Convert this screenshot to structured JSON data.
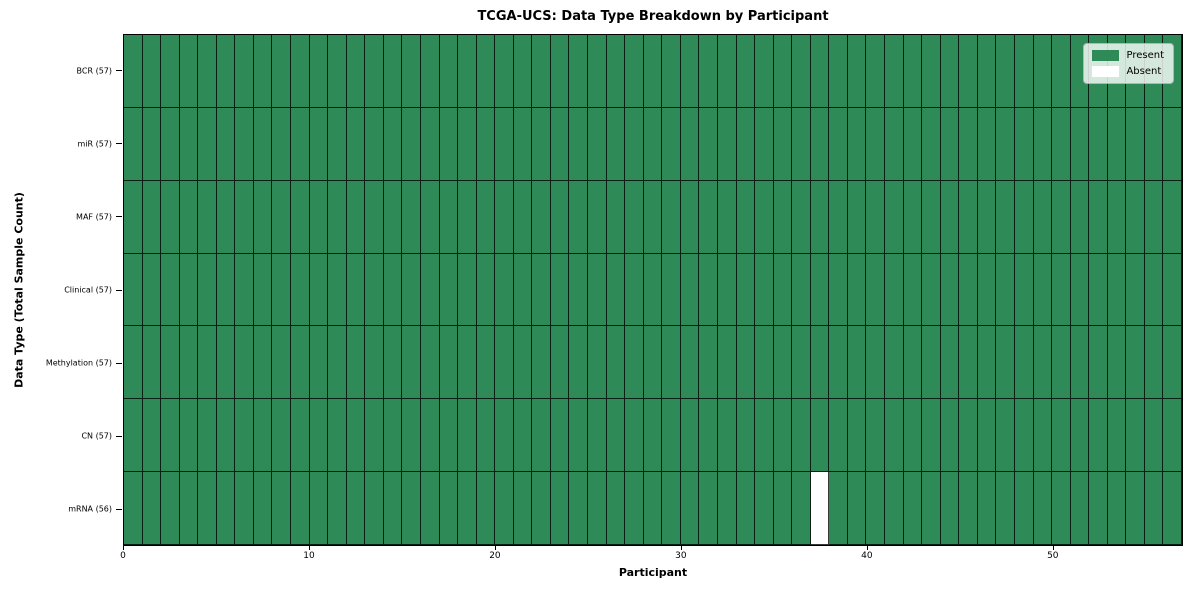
{
  "chart_data": {
    "type": "heatmap",
    "title": "TCGA-UCS: Data Type Breakdown by Participant",
    "xlabel": "Participant",
    "ylabel": "Data Type (Total Sample Count)",
    "n_participants": 57,
    "x_ticks": [
      0,
      10,
      20,
      30,
      40,
      50
    ],
    "rows": [
      {
        "label": "BCR (57)",
        "data_type": "BCR",
        "present_count": 57,
        "absent_participants": []
      },
      {
        "label": "miR (57)",
        "data_type": "miR",
        "present_count": 57,
        "absent_participants": []
      },
      {
        "label": "MAF (57)",
        "data_type": "MAF",
        "present_count": 57,
        "absent_participants": []
      },
      {
        "label": "Clinical (57)",
        "data_type": "Clinical",
        "present_count": 57,
        "absent_participants": []
      },
      {
        "label": "Methylation (57)",
        "data_type": "Methylation",
        "present_count": 57,
        "absent_participants": []
      },
      {
        "label": "CN (57)",
        "data_type": "CN",
        "present_count": 57,
        "absent_participants": []
      },
      {
        "label": "mRNA (56)",
        "data_type": "mRNA",
        "present_count": 56,
        "absent_participants": [
          37
        ]
      }
    ],
    "legend": [
      {
        "label": "Present",
        "color": "#2e8b57"
      },
      {
        "label": "Absent",
        "color": "#ffffff"
      }
    ],
    "colors": {
      "present": "#2e8b57",
      "absent": "#ffffff",
      "cell_edge": "#000000",
      "axis": "#000000"
    },
    "legend_position": "upper right",
    "grid": true
  }
}
